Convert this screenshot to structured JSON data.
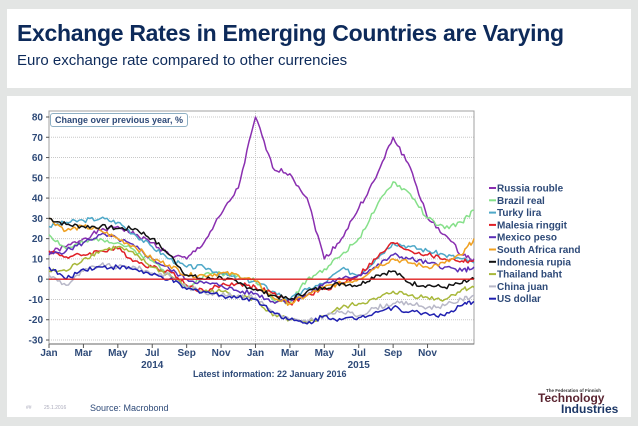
{
  "header": {
    "title": "Exchange Rates in Emerging Countries are Varying",
    "subtitle": "Euro exchange rate compared to other currencies"
  },
  "footer": {
    "page_number": "##",
    "date": "25.1.2016",
    "source": "Source: Macrobond",
    "logo_small": "The Federation of Finnish",
    "logo_line1": "Technology",
    "logo_line2": "Industries"
  },
  "chart_data": {
    "type": "line",
    "title": "Euro exchange rate compared to other currencies",
    "annotation": "Change over previous year, %",
    "latest_info": "Latest information: 22 January 2016",
    "ylabel": "Change over previous year, %",
    "xlabel": "",
    "ylim": [
      -30,
      80
    ],
    "yticks": [
      80,
      70,
      60,
      50,
      40,
      30,
      20,
      10,
      0,
      -10,
      -20,
      -30
    ],
    "xlim": [
      0,
      24.7
    ],
    "xticks": [
      {
        "pos": 0,
        "label": "Jan"
      },
      {
        "pos": 2,
        "label": "Mar"
      },
      {
        "pos": 4,
        "label": "May"
      },
      {
        "pos": 6,
        "label": "Jul"
      },
      {
        "pos": 8,
        "label": "Sep"
      },
      {
        "pos": 10,
        "label": "Nov"
      },
      {
        "pos": 12,
        "label": "Jan"
      },
      {
        "pos": 14,
        "label": "Mar"
      },
      {
        "pos": 16,
        "label": "May"
      },
      {
        "pos": 18,
        "label": "Jul"
      },
      {
        "pos": 20,
        "label": "Sep"
      },
      {
        "pos": 22,
        "label": "Nov"
      }
    ],
    "year_labels": [
      {
        "pos": 6,
        "label": "2014"
      },
      {
        "pos": 18,
        "label": "2015"
      }
    ],
    "grid": true,
    "legend_position": "right",
    "zero_line_color": "#e02020",
    "x": [
      0,
      1,
      2,
      3,
      4,
      5,
      6,
      7,
      8,
      9,
      10,
      11,
      12,
      13,
      14,
      15,
      16,
      17,
      18,
      19,
      20,
      21,
      22,
      23,
      24,
      24.7
    ],
    "series": [
      {
        "name": "Russia rouble",
        "color": "#8a2fb0",
        "values": [
          13,
          16,
          20,
          24,
          26,
          22,
          18,
          12,
          10,
          18,
          32,
          45,
          80,
          55,
          52,
          40,
          10,
          20,
          35,
          50,
          70,
          55,
          30,
          22,
          12,
          10
        ]
      },
      {
        "name": "Brazil real",
        "color": "#86e08a",
        "values": [
          22,
          15,
          18,
          20,
          18,
          14,
          9,
          3,
          -5,
          2,
          3,
          2,
          -1,
          -10,
          -12,
          0,
          5,
          12,
          20,
          35,
          48,
          42,
          30,
          25,
          28,
          34
        ]
      },
      {
        "name": "Turky lira",
        "color": "#4ea8c8",
        "values": [
          26,
          28,
          29,
          30,
          28,
          22,
          16,
          10,
          6,
          6,
          3,
          0,
          -1,
          -6,
          -10,
          -5,
          -2,
          5,
          2,
          10,
          18,
          16,
          14,
          12,
          10,
          8
        ]
      },
      {
        "name": "Malesia ringgit",
        "color": "#e01f26",
        "values": [
          14,
          11,
          12,
          14,
          15,
          9,
          6,
          4,
          -3,
          -6,
          -3,
          -2,
          -4,
          -7,
          -12,
          -8,
          -5,
          -2,
          2,
          10,
          18,
          14,
          12,
          10,
          9,
          9
        ]
      },
      {
        "name": "Mexico peso",
        "color": "#5b2fb8",
        "values": [
          12,
          14,
          18,
          22,
          20,
          16,
          10,
          5,
          0,
          -2,
          -3,
          -6,
          -7,
          -11,
          -10,
          -8,
          -2,
          0,
          2,
          6,
          12,
          10,
          8,
          6,
          4,
          6
        ]
      },
      {
        "name": "South Africa rand",
        "color": "#f0a020",
        "values": [
          30,
          24,
          26,
          24,
          20,
          16,
          10,
          7,
          2,
          2,
          3,
          2,
          -1,
          -9,
          -12,
          -8,
          -4,
          -2,
          0,
          6,
          10,
          8,
          6,
          8,
          12,
          20
        ]
      },
      {
        "name": "Indonesia rupia",
        "color": "#111111",
        "values": [
          30,
          27,
          26,
          26,
          25,
          25,
          20,
          12,
          2,
          0,
          1,
          -2,
          -5,
          -8,
          -10,
          -6,
          -4,
          -2,
          -3,
          2,
          4,
          -2,
          -3,
          -4,
          -2,
          0
        ]
      },
      {
        "name": "Thailand baht",
        "color": "#a8b83a",
        "values": [
          4,
          4,
          10,
          14,
          16,
          12,
          6,
          2,
          -4,
          -6,
          -6,
          -8,
          -10,
          -18,
          -20,
          -22,
          -18,
          -14,
          -12,
          -10,
          -6,
          -8,
          -9,
          -10,
          -5,
          -4
        ]
      },
      {
        "name": "China juan",
        "color": "#b8b8c8",
        "values": [
          2,
          -3,
          4,
          7,
          6,
          6,
          3,
          2,
          -4,
          -6,
          -8,
          -8,
          -9,
          -16,
          -20,
          -21,
          -18,
          -16,
          -18,
          -14,
          -12,
          -12,
          -14,
          -13,
          -10,
          -8
        ]
      },
      {
        "name": "US dollar",
        "color": "#2020b0",
        "values": [
          6,
          0,
          5,
          6,
          6,
          5,
          2,
          0,
          -5,
          -6,
          -8,
          -9,
          -10,
          -16,
          -20,
          -22,
          -18,
          -20,
          -19,
          -16,
          -14,
          -16,
          -17,
          -18,
          -13,
          -11
        ]
      }
    ]
  }
}
